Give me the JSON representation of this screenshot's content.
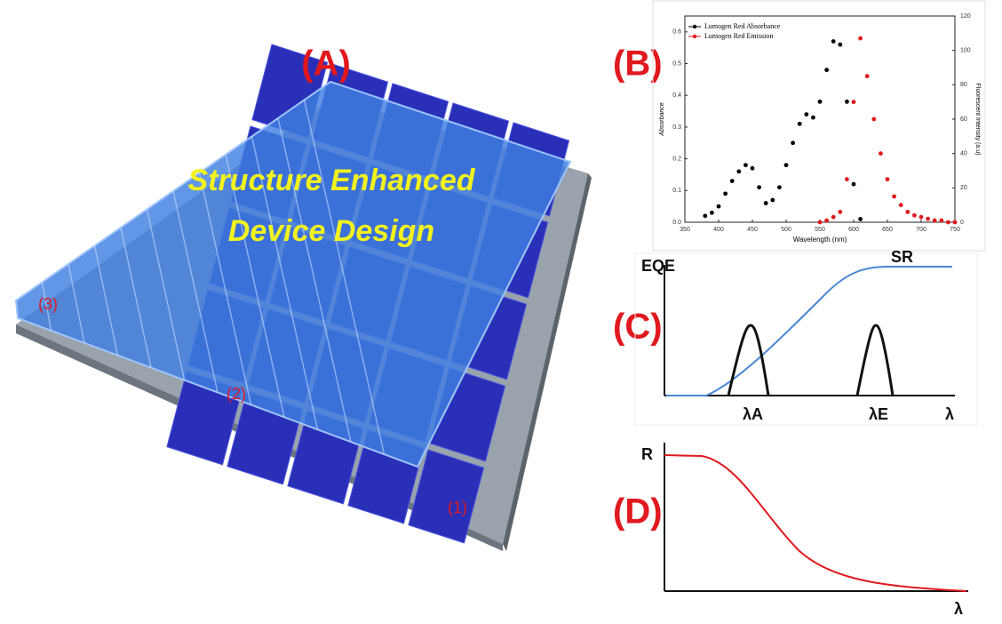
{
  "figure": {
    "panel_a": {
      "label": "(A)",
      "title_lines": [
        "Structure Enhanced",
        "Device Design"
      ],
      "markers": [
        "(1)",
        "(2)",
        "(3)"
      ]
    },
    "panel_b": {
      "label": "(B)"
    },
    "panel_c": {
      "label": "(C)",
      "y_label": "EQE",
      "curve_label": "SR",
      "absorption_label": "λA",
      "emission_label": "λE",
      "x_label": "λ"
    },
    "panel_d": {
      "label": "(D)",
      "y_label": "R",
      "x_label": "λ"
    }
  },
  "chart_data": {
    "type": "scatter",
    "x_label": "Wavelength (nm)",
    "y_label": "Absorbance",
    "y2_label": "Fluorescent Intensity (a.u)",
    "x": [
      370,
      380,
      390,
      400,
      410,
      420,
      430,
      440,
      450,
      460,
      470,
      480,
      490,
      500,
      510,
      520,
      530,
      540,
      550,
      560,
      570,
      580,
      590,
      600,
      610,
      620,
      630,
      640,
      650,
      660,
      670,
      680,
      690,
      700,
      710,
      720,
      730,
      740,
      750
    ],
    "series": [
      {
        "name": "Lumogen Red Absorbance",
        "color": "#000000",
        "values": [
          null,
          0.02,
          0.03,
          0.05,
          0.09,
          0.13,
          0.16,
          0.18,
          0.17,
          0.11,
          0.06,
          0.07,
          0.11,
          0.18,
          0.25,
          0.31,
          0.34,
          0.33,
          0.38,
          0.48,
          0.57,
          0.56,
          0.38,
          0.12,
          0.01,
          null,
          null,
          null,
          null,
          null,
          null,
          null,
          null,
          null,
          null,
          null,
          null,
          null,
          null
        ]
      },
      {
        "name": "Lumogen Red Emission",
        "color": "#e0191e",
        "axis": "y2",
        "values": [
          null,
          null,
          null,
          null,
          null,
          null,
          null,
          null,
          null,
          null,
          null,
          null,
          null,
          null,
          null,
          null,
          null,
          null,
          0,
          1,
          3,
          6,
          25,
          70,
          107,
          85,
          60,
          40,
          25,
          15,
          10,
          6,
          4,
          3,
          2,
          1,
          1,
          0,
          0
        ]
      }
    ],
    "xlim": [
      350,
      750
    ],
    "xticks": [
      350,
      400,
      450,
      500,
      550,
      600,
      650,
      700,
      750
    ],
    "ylim": [
      0,
      0.65
    ],
    "yticks": [
      {
        "value": 0,
        "label": "0.0"
      },
      0.1,
      0.2,
      0.3,
      0.4,
      0.5,
      0.6
    ],
    "y2lim": [
      0,
      120
    ],
    "y2ticks": [
      0,
      20,
      40,
      60,
      80,
      100,
      120
    ],
    "legend": "upper left"
  }
}
